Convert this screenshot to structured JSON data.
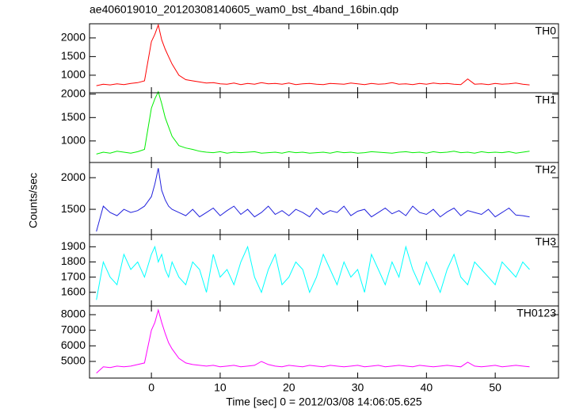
{
  "chart_data": {
    "type": "line",
    "title": "ae406019010_20120308140605_wam0_bst_4band_16bin.qdp",
    "y_label": "Counts/sec",
    "x_label": "Time [sec] 0 = 2012/03/08 14:06:05.625",
    "xlim": [
      -9,
      59.2
    ],
    "xticks": [
      0,
      10,
      20,
      30,
      40,
      50
    ],
    "x": [
      -8,
      -7,
      -6,
      -5,
      -4,
      -3,
      -2,
      -1,
      0,
      0.5,
      1,
      1.5,
      2,
      2.5,
      3,
      4,
      5,
      6,
      7,
      8,
      9,
      10,
      11,
      12,
      13,
      14,
      15,
      16,
      17,
      18,
      19,
      20,
      21,
      22,
      23,
      24,
      25,
      26,
      27,
      28,
      29,
      30,
      31,
      32,
      33,
      34,
      35,
      36,
      37,
      38,
      39,
      40,
      41,
      42,
      43,
      44,
      45,
      46,
      47,
      48,
      49,
      50,
      51,
      52,
      53,
      54,
      55
    ],
    "panels": [
      {
        "name": "TH0",
        "color": "#ff0000",
        "ylim": [
          530,
          2380
        ],
        "yticks": [
          1000,
          1500,
          2000
        ],
        "values": [
          720,
          760,
          740,
          770,
          750,
          780,
          800,
          850,
          1900,
          2100,
          2350,
          1950,
          1700,
          1500,
          1300,
          1000,
          880,
          850,
          820,
          790,
          800,
          770,
          760,
          790,
          750,
          780,
          760,
          800,
          770,
          780,
          760,
          790,
          750,
          770,
          780,
          760,
          750,
          780,
          770,
          760,
          790,
          770,
          750,
          780,
          760,
          770,
          800,
          760,
          770,
          750,
          780,
          760,
          790,
          770,
          780,
          760,
          750,
          900,
          760,
          770,
          750,
          780,
          760,
          770,
          790,
          760,
          740
        ]
      },
      {
        "name": "TH1",
        "color": "#00ee00",
        "ylim": [
          540,
          2030
        ],
        "yticks": [
          1000,
          1500,
          2000
        ],
        "values": [
          720,
          760,
          740,
          780,
          760,
          740,
          770,
          820,
          1700,
          1900,
          2050,
          1800,
          1500,
          1300,
          1100,
          900,
          850,
          820,
          780,
          760,
          750,
          770,
          740,
          760,
          750,
          760,
          770,
          740,
          750,
          760,
          740,
          770,
          750,
          760,
          740,
          750,
          760,
          740,
          770,
          750,
          760,
          740,
          750,
          770,
          760,
          750,
          740,
          760,
          770,
          750,
          760,
          740,
          770,
          750,
          760,
          780,
          750,
          760,
          740,
          770,
          750,
          760,
          750,
          770,
          740,
          760,
          780
        ]
      },
      {
        "name": "TH2",
        "color": "#2222dd",
        "ylim": [
          1100,
          2240
        ],
        "yticks": [
          1500,
          2000
        ],
        "values": [
          1150,
          1550,
          1450,
          1400,
          1500,
          1450,
          1480,
          1550,
          1700,
          1900,
          2150,
          1800,
          1650,
          1550,
          1500,
          1450,
          1400,
          1500,
          1380,
          1450,
          1520,
          1400,
          1480,
          1550,
          1420,
          1500,
          1380,
          1450,
          1550,
          1420,
          1480,
          1400,
          1500,
          1450,
          1380,
          1520,
          1420,
          1480,
          1450,
          1550,
          1400,
          1470,
          1500,
          1380,
          1450,
          1520,
          1430,
          1480,
          1400,
          1550,
          1450,
          1420,
          1500,
          1380,
          1460,
          1520,
          1400,
          1480,
          1450,
          1420,
          1500,
          1380,
          1450,
          1520,
          1410,
          1400,
          1380
        ]
      },
      {
        "name": "TH3",
        "color": "#00ffff",
        "ylim": [
          1510,
          1980
        ],
        "yticks": [
          1600,
          1700,
          1800,
          1900
        ],
        "values": [
          1550,
          1800,
          1700,
          1650,
          1850,
          1750,
          1800,
          1700,
          1850,
          1900,
          1800,
          1850,
          1750,
          1700,
          1800,
          1700,
          1650,
          1800,
          1750,
          1600,
          1850,
          1700,
          1750,
          1650,
          1800,
          1900,
          1700,
          1600,
          1750,
          1850,
          1650,
          1700,
          1800,
          1750,
          1600,
          1700,
          1850,
          1750,
          1650,
          1800,
          1700,
          1750,
          1600,
          1850,
          1750,
          1650,
          1800,
          1700,
          1900,
          1750,
          1650,
          1800,
          1700,
          1600,
          1750,
          1850,
          1700,
          1650,
          1800,
          1750,
          1700,
          1650,
          1800,
          1750,
          1700,
          1800,
          1750
        ]
      },
      {
        "name": "TH0123",
        "color": "#ff00ff",
        "ylim": [
          3930,
          8560
        ],
        "yticks": [
          5000,
          6000,
          7000,
          8000
        ],
        "values": [
          4250,
          4650,
          4600,
          4700,
          4650,
          4700,
          4800,
          4900,
          7000,
          7500,
          8300,
          7500,
          6800,
          6200,
          5800,
          5200,
          4900,
          4800,
          4750,
          4700,
          4750,
          4650,
          4700,
          4750,
          4650,
          4700,
          4750,
          5000,
          4800,
          4700,
          4650,
          4750,
          4700,
          4650,
          4750,
          4700,
          4650,
          4750,
          4700,
          4650,
          4700,
          4750,
          4650,
          4700,
          4750,
          4650,
          4700,
          4750,
          4700,
          4650,
          4750,
          4700,
          4650,
          4700,
          4750,
          4700,
          4650,
          4950,
          4700,
          4650,
          4700,
          4750,
          4650,
          4700,
          4750,
          4700,
          4650
        ]
      }
    ]
  }
}
